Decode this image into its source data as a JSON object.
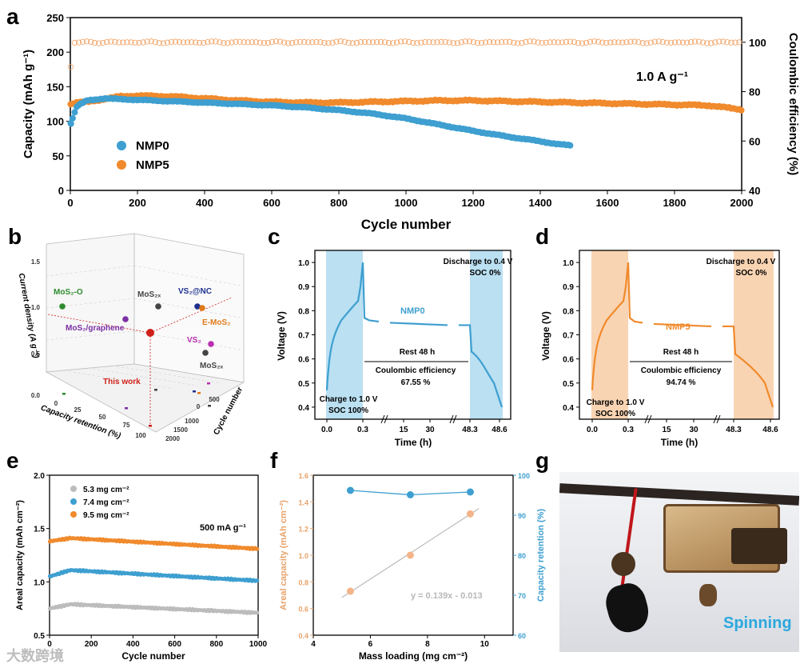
{
  "panels": {
    "a": "a",
    "b": "b",
    "c": "c",
    "d": "d",
    "e": "e",
    "f": "f",
    "g": "g"
  },
  "watermark": "大数跨境",
  "colors": {
    "nmp0": "#3e9fd0",
    "nmp5": "#f08a2c",
    "gray": "#bcbcbc",
    "shadeBlue": "#a9d8ef",
    "shadeOrange": "#f8c9a0"
  },
  "chart_data": [
    {
      "id": "a",
      "type": "scatter",
      "xlabel": "Cycle number",
      "ylabel": "Capacity (mAh g⁻¹)",
      "y2label": "Coulombic efficiency (%)",
      "annotation": "1.0 A g⁻¹",
      "xlim": [
        0,
        2000
      ],
      "ylim": [
        0,
        250
      ],
      "y2lim": [
        40,
        110
      ],
      "xticks": [
        0,
        200,
        400,
        600,
        800,
        1000,
        1200,
        1400,
        1600,
        1800,
        2000
      ],
      "yticks": [
        0,
        50,
        100,
        150,
        200,
        250
      ],
      "y2ticks": [
        40,
        60,
        80,
        100
      ],
      "series": [
        {
          "name": "NMP0",
          "x": [
            1,
            20,
            50,
            100,
            150,
            200,
            300,
            400,
            500,
            600,
            700,
            800,
            900,
            1000,
            1100,
            1200,
            1300,
            1400,
            1450,
            1490
          ],
          "y": [
            97,
            122,
            130,
            133,
            132,
            131,
            129,
            127,
            125,
            123,
            120,
            116,
            111,
            104,
            95,
            86,
            78,
            71,
            67,
            65
          ]
        },
        {
          "name": "NMP5",
          "x": [
            1,
            20,
            50,
            100,
            150,
            200,
            300,
            400,
            500,
            600,
            700,
            800,
            900,
            1000,
            1100,
            1200,
            1300,
            1400,
            1500,
            1600,
            1700,
            1800,
            1900,
            1950,
            2000
          ],
          "y": [
            125,
            127,
            128,
            132,
            136,
            137,
            136,
            133,
            130,
            128,
            127,
            127,
            128,
            129,
            130,
            130,
            129,
            128,
            127,
            126,
            125,
            124,
            123,
            120,
            117
          ]
        }
      ],
      "ce": {
        "value": 100,
        "start": [
          88,
          67
        ]
      }
    },
    {
      "id": "b",
      "type": "scatter",
      "xlabel": "Capacity retention (%)",
      "ylabel": "Current density (A g⁻¹)",
      "zlabel": "Cycle number",
      "yticks": [
        "0.0",
        "0.5",
        "1.0",
        "1.5"
      ],
      "xticks": [
        "0",
        "25",
        "50",
        "75",
        "100"
      ],
      "zticks": [
        "0",
        "500",
        "1000",
        "1500",
        "2000"
      ],
      "points": [
        {
          "label": "MoS₂-O",
          "color": "#2e8b2e"
        },
        {
          "label": "MoS₂/graphene",
          "color": "#7b2fa3"
        },
        {
          "label": "MoS₂ₓ",
          "color": "#444444"
        },
        {
          "label": "VS₂@NC",
          "color": "#1c2f8f"
        },
        {
          "label": "E-MoS₂",
          "color": "#e07a18"
        },
        {
          "label": "VS₂",
          "color": "#b82fb0"
        },
        {
          "label": "MoS₂ₓ",
          "color": "#444444"
        },
        {
          "label": "This work",
          "color": "#d0201a"
        }
      ]
    },
    {
      "id": "c",
      "type": "line",
      "xlabel": "Time (h)",
      "ylabel": "Voltage (V)",
      "ylim": [
        0.35,
        1.05
      ],
      "yticks": [
        "0.4",
        "0.5",
        "0.6",
        "0.7",
        "0.8",
        "0.9",
        "1.0"
      ],
      "xticks": [
        "0.0",
        "0.3",
        "15",
        "30",
        "48.3",
        "48.6"
      ],
      "series_name": "NMP0",
      "labels": {
        "charge": "Charge to 1.0 V",
        "soc_full": "SOC 100%",
        "discharge": "Discharge to 0.4 V",
        "soc_empty": "SOC 0%",
        "rest": "Rest 48 h",
        "ce_label": "Coulombic efficiency",
        "ce_value": "67.55 %"
      }
    },
    {
      "id": "d",
      "type": "line",
      "xlabel": "Time (h)",
      "ylabel": "Voltage (V)",
      "ylim": [
        0.35,
        1.05
      ],
      "yticks": [
        "0.4",
        "0.5",
        "0.6",
        "0.7",
        "0.8",
        "0.9",
        "1.0"
      ],
      "xticks": [
        "0.0",
        "0.3",
        "15",
        "30",
        "48.3",
        "48.6"
      ],
      "series_name": "NMP5",
      "labels": {
        "charge": "Charge to 1.0 V",
        "soc_full": "SOC 100%",
        "discharge": "Discharge to 0.4 V",
        "soc_empty": "SOC 0%",
        "rest": "Rest 48 h",
        "ce_label": "Coulombic efficiency",
        "ce_value": "94.74 %"
      }
    },
    {
      "id": "e",
      "type": "scatter",
      "xlabel": "Cycle number",
      "ylabel": "Areal capacity (mAh cm⁻²)",
      "annotation": "500 mA g⁻¹",
      "xlim": [
        0,
        1000
      ],
      "ylim": [
        0.5,
        2.0
      ],
      "xticks": [
        0,
        200,
        400,
        600,
        800,
        1000
      ],
      "yticks": [
        "0.5",
        "1.0",
        "1.5",
        "2.0"
      ],
      "series": [
        {
          "name": "5.3 mg cm⁻²",
          "start": 0.75,
          "peak": 0.79,
          "end": 0.71
        },
        {
          "name": "7.4 mg cm⁻²",
          "start": 1.05,
          "peak": 1.11,
          "end": 1.01
        },
        {
          "name": "9.5 mg cm⁻²",
          "start": 1.38,
          "peak": 1.41,
          "end": 1.31
        }
      ]
    },
    {
      "id": "f",
      "type": "scatter",
      "xlabel": "Mass loading (mg cm⁻²)",
      "ylabel": "Areal capacity (mAh cm⁻²)",
      "y2label": "Capacity retention (%)",
      "fit": "y = 0.139x - 0.013",
      "xlim": [
        4,
        11
      ],
      "ylim": [
        0.4,
        1.6
      ],
      "y2lim": [
        60,
        100
      ],
      "xticks": [
        4,
        6,
        8,
        10
      ],
      "yticks": [
        "0.4",
        "0.6",
        "0.8",
        "1.0",
        "1.2",
        "1.4",
        "1.6"
      ],
      "y2ticks": [
        60,
        70,
        80,
        90,
        100
      ],
      "x": [
        5.3,
        7.4,
        9.5
      ],
      "capacity": [
        0.73,
        1.0,
        1.31
      ],
      "retention": [
        96.2,
        95.1,
        95.8
      ]
    }
  ],
  "photo": {
    "caption": "Spinning"
  }
}
